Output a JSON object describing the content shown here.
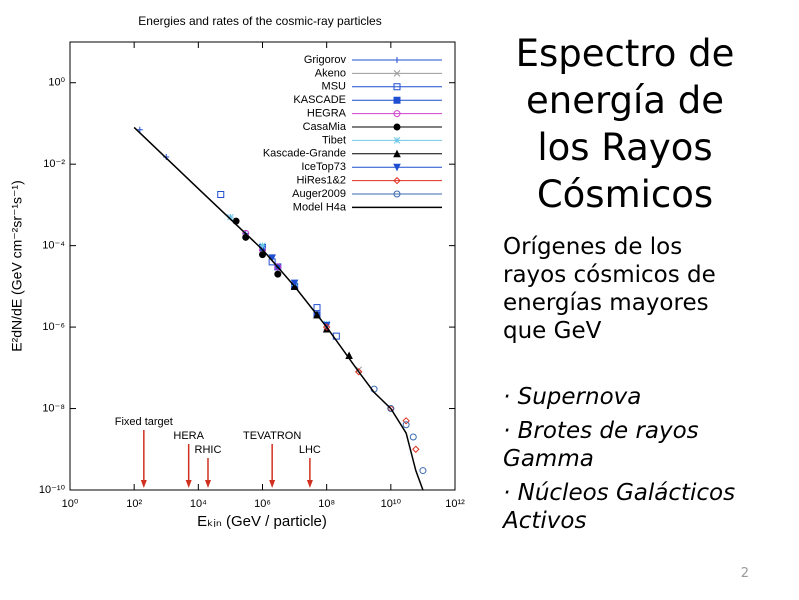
{
  "chart_data": {
    "type": "scatter",
    "title": "Energies and rates of the cosmic-ray particles",
    "xlabel": "Eₖᵢₙ  (GeV / particle)",
    "ylabel": "E²dN/dE   (GeV cm⁻²sr⁻¹s⁻¹)",
    "log_x": true,
    "log_y": true,
    "legend": "upper right",
    "xlim": [
      1,
      1000000000000
    ],
    "ylim": [
      1e-10,
      10
    ],
    "xticks": [
      {
        "value": 1,
        "label": "10⁰"
      },
      {
        "value": 100,
        "label": "10²"
      },
      {
        "value": 10000,
        "label": "10⁴"
      },
      {
        "value": 1000000,
        "label": "10⁶"
      },
      {
        "value": 100000000,
        "label": "10⁸"
      },
      {
        "value": 10000000000,
        "label": "10¹⁰"
      },
      {
        "value": 1000000000000,
        "label": "10¹²"
      }
    ],
    "yticks": [
      {
        "value": 1e-10,
        "label": "10⁻¹⁰"
      },
      {
        "value": 1e-08,
        "label": "10⁻⁸"
      },
      {
        "value": 1e-06,
        "label": "10⁻⁶"
      },
      {
        "value": 0.0001,
        "label": "10⁻⁴"
      },
      {
        "value": 0.01,
        "label": "10⁻²"
      },
      {
        "value": 1,
        "label": "10⁰"
      }
    ],
    "series": [
      {
        "name": "Grigorov",
        "color": "#1f4fd0",
        "marker": "plus",
        "x": [
          150,
          1000,
          100000,
          300000
        ],
        "values": [
          0.07,
          0.015,
          0.0005,
          0.0002
        ]
      },
      {
        "name": "Akeno",
        "color": "#999999",
        "marker": "cross",
        "x": [
          1000000,
          10000000,
          100000000,
          1000000000
        ],
        "values": [
          8e-05,
          1e-05,
          1e-06,
          9e-08
        ]
      },
      {
        "name": "MSU",
        "color": "#1f4fd0",
        "marker": "square-open",
        "x": [
          50000,
          2000000,
          10000000,
          50000000,
          200000000
        ],
        "values": [
          0.0018,
          4e-05,
          1e-05,
          3e-06,
          6e-07
        ]
      },
      {
        "name": "KASCADE",
        "color": "#1f4fd0",
        "marker": "square",
        "x": [
          1000000,
          3000000,
          10000000,
          50000000
        ],
        "values": [
          9e-05,
          3e-05,
          1e-05,
          2e-06
        ]
      },
      {
        "name": "HEGRA",
        "color": "#d040d0",
        "marker": "circle-open",
        "x": [
          300000,
          1000000,
          3000000
        ],
        "values": [
          0.0002,
          8e-05,
          3e-05
        ]
      },
      {
        "name": "CasaMia",
        "color": "#000000",
        "marker": "circle",
        "x": [
          150000,
          300000,
          1000000,
          3000000
        ],
        "values": [
          0.0004,
          0.00016,
          6e-05,
          2e-05
        ]
      },
      {
        "name": "Tibet",
        "color": "#70c8e8",
        "marker": "star",
        "x": [
          100000,
          1000000,
          10000000,
          100000000
        ],
        "values": [
          0.0005,
          0.0001,
          1.2e-05,
          1.2e-06
        ]
      },
      {
        "name": "Kascade-Grande",
        "color": "#000000",
        "marker": "triangle",
        "x": [
          10000000,
          50000000,
          100000000,
          500000000
        ],
        "values": [
          1e-05,
          2e-06,
          9e-07,
          2e-07
        ]
      },
      {
        "name": "IceTop73",
        "color": "#1f4fd0",
        "marker": "triangle-down",
        "x": [
          2000000,
          10000000,
          100000000
        ],
        "values": [
          5e-05,
          1.2e-05,
          1.1e-06
        ]
      },
      {
        "name": "HiRes1&2",
        "color": "#e03020",
        "marker": "diamond",
        "x": [
          100000000,
          1000000000,
          10000000000,
          30000000000,
          60000000000
        ],
        "values": [
          1e-06,
          8e-08,
          1e-08,
          5e-09,
          1e-09
        ]
      },
      {
        "name": "Auger2009",
        "color": "#3a6ab0",
        "marker": "circle-open",
        "x": [
          3000000000,
          10000000000,
          30000000000,
          50000000000,
          100000000000
        ],
        "values": [
          3e-08,
          1e-08,
          4e-09,
          2e-09,
          3e-10
        ]
      },
      {
        "name": "Model H4a",
        "color": "#000000",
        "marker": "line",
        "x": [
          100,
          10000,
          1000000,
          10000000,
          100000000,
          1000000000,
          3000000000,
          10000000000,
          30000000000,
          60000000000,
          100000000000
        ],
        "values": [
          0.08,
          0.0025,
          8e-05,
          1e-05,
          1e-06,
          8e-08,
          2.5e-08,
          1e-08,
          2.5e-09,
          3e-10,
          1e-10
        ]
      }
    ],
    "annotations": [
      {
        "text": "Fixed target",
        "x": 200,
        "row": 0
      },
      {
        "text": "HERA",
        "x": 5000,
        "row": 1
      },
      {
        "text": "RHIC",
        "x": 20000,
        "row": 2
      },
      {
        "text": "TEVATRON",
        "x": 2000000,
        "row": 1
      },
      {
        "text": "LHC",
        "x": 30000000,
        "row": 2
      }
    ]
  },
  "slide": {
    "title": [
      "Espectro de",
      "energía de",
      "los Rayos",
      "Cósmicos"
    ],
    "body": [
      "Orígenes de los",
      "rayos cósmicos de",
      "energías mayores",
      "que GeV"
    ],
    "bullets": [
      [
        "· Supernova"
      ],
      [
        "· Brotes de rayos",
        "Gamma"
      ],
      [
        "· Núcleos Galácticos",
        "Activos"
      ]
    ],
    "page_number": 2
  }
}
